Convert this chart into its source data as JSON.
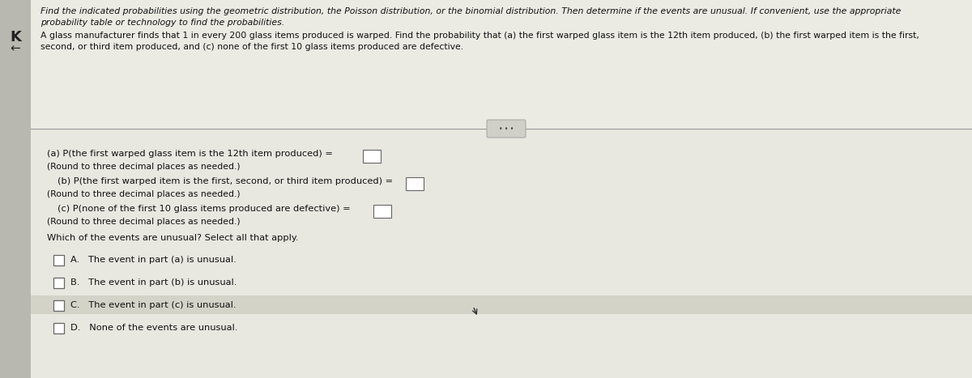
{
  "outer_bg": "#c8c7c0",
  "header_bg": "#e8e7e0",
  "content_bg": "#e8e7e0",
  "divider_color": "#999999",
  "text_color": "#111111",
  "highlight_color": "#d4d3c8",
  "checkbox_fill": "#ffffff",
  "checkbox_edge": "#666666",
  "btn_fill": "#d0cfc8",
  "btn_edge": "#aaaaaa",
  "k_text": "K",
  "k_arrow": "←",
  "header_line1": "Find the indicated probabilities using the geometric distribution, the Poisson distribution, or the binomial distribution. Then determine if the events are unusual. If convenient, use the appropriate",
  "header_line2": "probability table or technology to find the probabilities.",
  "problem_line1": "A glass manufacturer finds that 1 in every 200 glass items produced is warped. Find the probability that (a) the first warped glass item is the 12th item produced, (b) the first warped item is the first,",
  "problem_line2": "second, or third item produced, and (c) none of the first 10 glass items produced are defective.",
  "part_a": "(a) P(the first warped glass item is the 12th item produced) =",
  "part_a_round": "(Round to three decimal places as needed.)",
  "part_b": "(b) P(the first warped item is the first, second, or third item produced) =",
  "part_b_round": "(Round to three decimal places as needed.)",
  "part_c": "(c) P(none of the first 10 glass items produced are defective) =",
  "part_c_round": "(Round to three decimal places as needed.)",
  "unusual_q": "Which of the events are unusual? Select all that apply.",
  "opt_a": "A.   The event in part (a) is unusual.",
  "opt_b": "B.   The event in part (b) is unusual.",
  "opt_c": "C.   The event in part (c) is unusual.",
  "opt_d": "D.   None of the events are unusual.",
  "header_fs": 7.8,
  "body_fs": 8.2,
  "small_fs": 7.8
}
